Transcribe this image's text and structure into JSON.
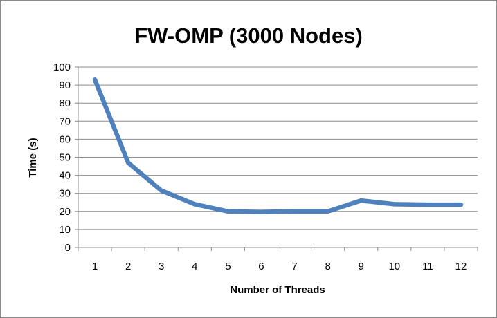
{
  "chart_data": {
    "type": "line",
    "title": "FW-OMP (3000 Nodes)",
    "xlabel": "Number of Threads",
    "ylabel": "Time (s)",
    "categories": [
      "1",
      "2",
      "3",
      "4",
      "5",
      "6",
      "7",
      "8",
      "9",
      "10",
      "11",
      "12"
    ],
    "series": [
      {
        "values": [
          93,
          47,
          31.5,
          24,
          20,
          19.7,
          20,
          20,
          26,
          24,
          23.7,
          23.7
        ],
        "color": "#4f81bd"
      }
    ],
    "ylim": [
      0,
      100
    ],
    "yticks": [
      0,
      10,
      20,
      30,
      40,
      50,
      60,
      70,
      80,
      90,
      100
    ],
    "grid": true,
    "legend": "none"
  }
}
